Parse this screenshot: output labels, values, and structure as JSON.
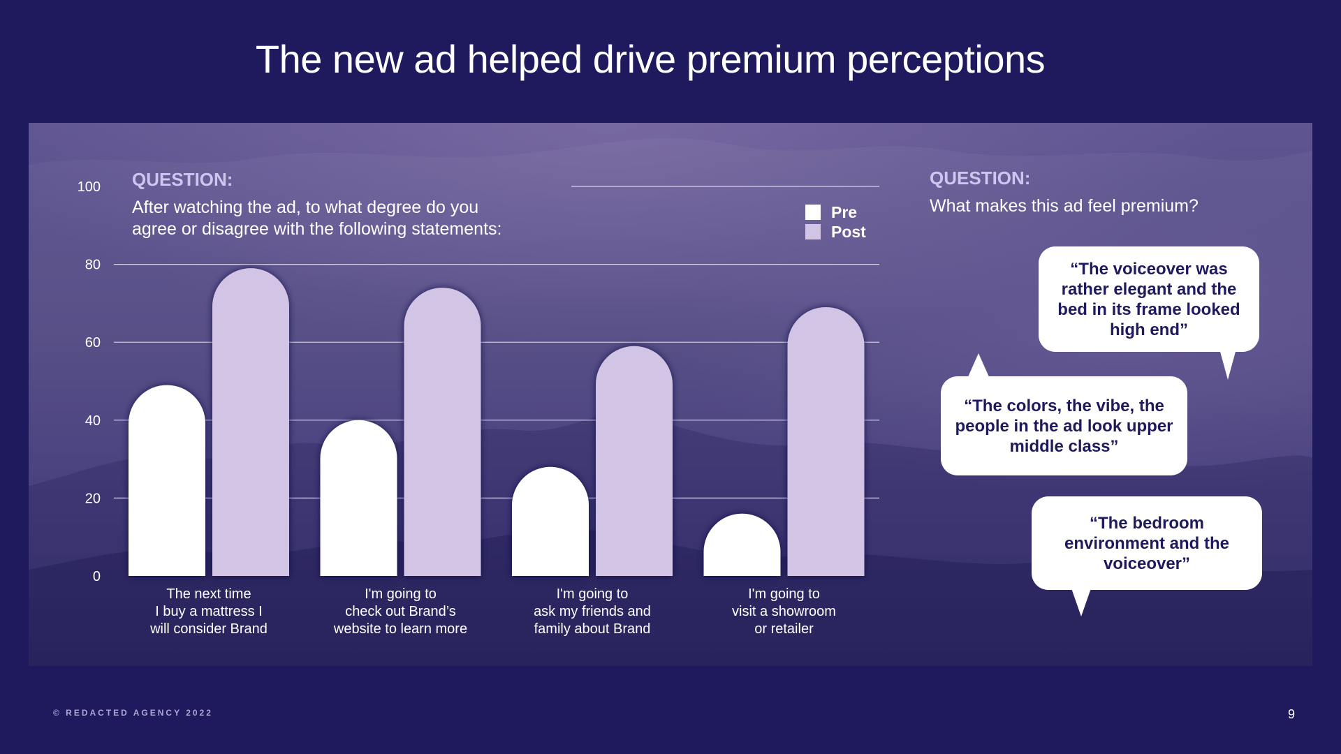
{
  "slide": {
    "title": "The new ad helped drive premium perceptions",
    "footer": "© REDACTED AGENCY 2022",
    "page_number": "9"
  },
  "left_question": {
    "label": "QUESTION:",
    "line1": "After watching the ad, to what degree do you",
    "line2": "agree or disagree with the following statements:"
  },
  "right_question": {
    "label": "QUESTION:",
    "text": "What makes this ad feel premium?"
  },
  "quotes": [
    "“The voiceover was rather elegant and the bed in its frame looked high end”",
    "“The colors, the vibe, the people in the ad look upper middle class”",
    "“The bedroom environment and the voiceover”"
  ],
  "colors": {
    "background": "#1f1a5e",
    "pre": "#ffffff",
    "post": "#d2c4e4",
    "gridline": "#d9d3ee",
    "axis_text": "#ffffff"
  },
  "chart_data": {
    "type": "bar",
    "categories": [
      [
        "The next time",
        "I buy a mattress I",
        "will consider Brand"
      ],
      [
        "I'm going to",
        "check out Brand’s",
        "website to learn more"
      ],
      [
        "I'm going to",
        "ask my friends and",
        "family about Brand"
      ],
      [
        "I'm going to",
        "visit a showroom",
        "or retailer"
      ]
    ],
    "series": [
      {
        "name": "Pre",
        "values": [
          49,
          40,
          28,
          16
        ]
      },
      {
        "name": "Post",
        "values": [
          79,
          74,
          59,
          69
        ]
      }
    ],
    "yticks": [
      0,
      20,
      40,
      60,
      80,
      100
    ],
    "ylim": [
      0,
      100
    ],
    "legend": [
      "Pre",
      "Post"
    ],
    "legend_position": "top-right",
    "grid": true
  }
}
